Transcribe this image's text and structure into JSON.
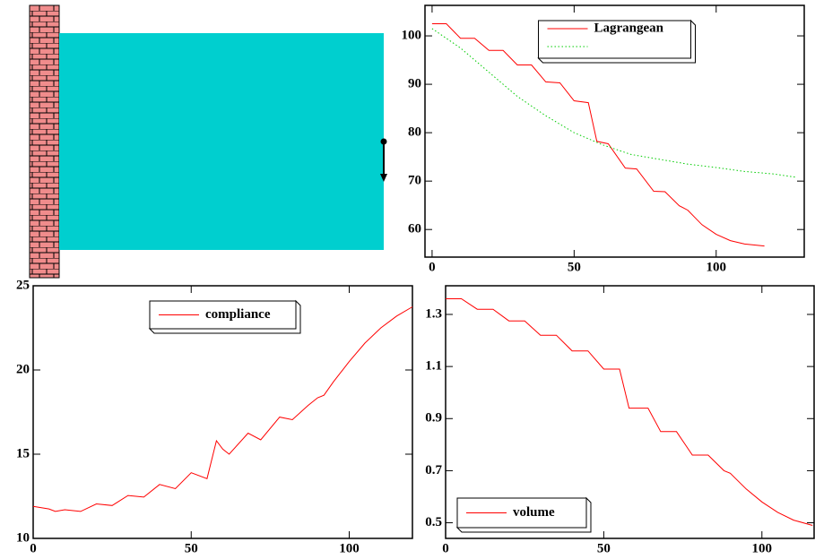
{
  "chart_data": [
    {
      "type": "line",
      "legend": "upper center",
      "xlim": [
        -2.5,
        131
      ],
      "xticks": [
        0,
        50,
        100
      ],
      "ylim": [
        54.3,
        106.3
      ],
      "yticks": [
        60,
        70,
        80,
        90,
        100
      ],
      "series": [
        {
          "name": "Lagrangean",
          "color": "#ff0000",
          "style": "solid",
          "x": [
            0,
            5,
            10,
            15,
            20,
            25,
            30,
            35,
            40,
            45,
            50,
            55,
            58,
            62,
            68,
            72,
            78,
            82,
            87,
            90,
            95,
            100,
            105,
            110,
            117
          ],
          "values": [
            102.5,
            102.5,
            99.5,
            99.5,
            97,
            97,
            94,
            94,
            90.5,
            90.3,
            86.6,
            86.2,
            78.2,
            77.7,
            72.7,
            72.5,
            67.9,
            67.8,
            64.9,
            64,
            61,
            59,
            57.7,
            57,
            56.6
          ]
        },
        {
          "color": "#00cc00",
          "style": "dotted",
          "x": [
            0,
            10,
            20,
            30,
            40,
            50,
            60,
            70,
            80,
            90,
            100,
            110,
            120,
            128
          ],
          "values": [
            101.5,
            97.5,
            92.5,
            87.5,
            83.5,
            80,
            77.5,
            75.5,
            74.5,
            73.5,
            72.8,
            72,
            71.5,
            70.8
          ]
        }
      ]
    },
    {
      "type": "line",
      "legend": "upper center",
      "xlim": [
        0,
        120
      ],
      "xticks": [
        0,
        50,
        100
      ],
      "ylim": [
        10,
        25
      ],
      "yticks": [
        10,
        15,
        20,
        25
      ],
      "series": [
        {
          "name": "compliance",
          "color": "#ff0000",
          "style": "solid",
          "x": [
            0,
            5,
            7,
            10,
            15,
            20,
            25,
            30,
            35,
            40,
            45,
            50,
            55,
            58,
            60,
            62,
            68,
            72,
            78,
            82,
            87,
            90,
            92,
            95,
            100,
            105,
            110,
            115,
            120
          ],
          "values": [
            11.9,
            11.75,
            11.6,
            11.7,
            11.6,
            12.05,
            11.95,
            12.55,
            12.45,
            13.2,
            12.95,
            13.9,
            13.55,
            15.8,
            15.3,
            15.0,
            16.25,
            15.85,
            17.2,
            17.05,
            17.9,
            18.35,
            18.5,
            19.3,
            20.5,
            21.6,
            22.5,
            23.2,
            23.75
          ]
        }
      ]
    },
    {
      "type": "line",
      "legend": "lower left",
      "xlim": [
        0,
        116.5
      ],
      "xticks": [
        0,
        50,
        100
      ],
      "ylim": [
        0.44,
        1.41
      ],
      "yticks": [
        0.5,
        0.7,
        0.9,
        1.1,
        1.3
      ],
      "series": [
        {
          "name": "volume",
          "color": "#ff0000",
          "style": "solid",
          "x": [
            0,
            5,
            10,
            15,
            20,
            25,
            30,
            35,
            40,
            45,
            50,
            55,
            58,
            64,
            68,
            73,
            78,
            83,
            88,
            90,
            95,
            100,
            105,
            110,
            116
          ],
          "values": [
            1.36,
            1.36,
            1.32,
            1.32,
            1.275,
            1.275,
            1.22,
            1.22,
            1.16,
            1.16,
            1.09,
            1.09,
            0.94,
            0.94,
            0.85,
            0.85,
            0.76,
            0.76,
            0.7,
            0.69,
            0.63,
            0.58,
            0.54,
            0.51,
            0.49
          ]
        }
      ]
    }
  ]
}
